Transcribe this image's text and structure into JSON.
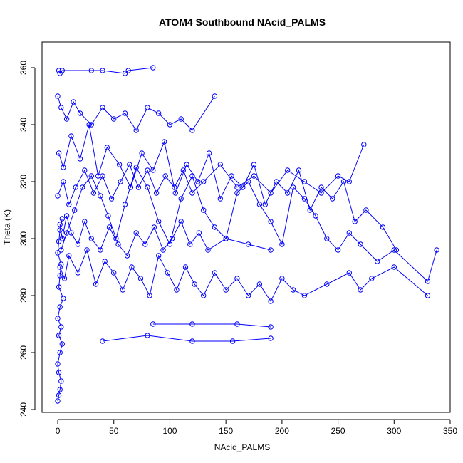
{
  "chart_data": {
    "type": "scatter",
    "title": "ATOM4 Southbound NAcid_PALMS",
    "xlabel": "NAcid_PALMS",
    "ylabel": "Theta (K)",
    "xlim": [
      -14,
      350
    ],
    "ylim": [
      239,
      369
    ],
    "xticks": [
      "0",
      "50",
      "100",
      "150",
      "200",
      "250",
      "300",
      "350"
    ],
    "xtick_values": [
      0,
      50,
      100,
      150,
      200,
      250,
      300,
      350
    ],
    "yticks": [
      "240",
      "260",
      "280",
      "300",
      "320",
      "340",
      "360"
    ],
    "ytick_values": [
      240,
      260,
      280,
      300,
      320,
      340,
      360
    ],
    "color": "#0000ff",
    "marker": "open-circle",
    "lines_connect_points": true,
    "grid": false,
    "series": [
      {
        "x": [
          0,
          1,
          2,
          3,
          1,
          0,
          2,
          4,
          1,
          3,
          0,
          2,
          5,
          1,
          2,
          3,
          0,
          1,
          2,
          4
        ],
        "y": [
          243,
          245,
          247,
          250,
          253,
          256,
          260,
          263,
          266,
          269,
          272,
          276,
          279,
          283,
          287,
          291,
          295,
          299,
          303,
          307
        ]
      },
      {
        "x": [
          3,
          8,
          15,
          22,
          30,
          38,
          45,
          52,
          60,
          70,
          80,
          90,
          100,
          110,
          120,
          130,
          140,
          150,
          160,
          170,
          180,
          190,
          200,
          210,
          220,
          230,
          240,
          250,
          260,
          270,
          285,
          300,
          330,
          338
        ],
        "y": [
          296,
          302,
          310,
          318,
          322,
          315,
          308,
          300,
          312,
          325,
          318,
          306,
          298,
          314,
          322,
          310,
          304,
          300,
          316,
          320,
          312,
          306,
          298,
          318,
          314,
          308,
          300,
          296,
          302,
          298,
          292,
          296,
          285,
          296
        ]
      },
      {
        "x": [
          1,
          5,
          12,
          20,
          28,
          36,
          44,
          55,
          65,
          75,
          85,
          95,
          105,
          115,
          125,
          135,
          145,
          155,
          165,
          175,
          185,
          195,
          205,
          215,
          225,
          235,
          245,
          255,
          265,
          275,
          290,
          302
        ],
        "y": [
          330,
          325,
          336,
          328,
          340,
          322,
          332,
          326,
          318,
          330,
          324,
          334,
          316,
          326,
          320,
          330,
          314,
          322,
          318,
          326,
          312,
          320,
          316,
          324,
          310,
          318,
          314,
          320,
          306,
          310,
          304,
          296
        ]
      },
      {
        "x": [
          2,
          6,
          10,
          18,
          26,
          34,
          42,
          50,
          58,
          66,
          74,
          82,
          90,
          98,
          106,
          114,
          122,
          130,
          140,
          150,
          160,
          170,
          180,
          190,
          200,
          210,
          220,
          240,
          260,
          270,
          280,
          300,
          330
        ],
        "y": [
          290,
          286,
          294,
          288,
          296,
          284,
          292,
          288,
          282,
          290,
          286,
          280,
          294,
          288,
          282,
          290,
          284,
          280,
          288,
          282,
          286,
          280,
          284,
          278,
          286,
          282,
          280,
          284,
          288,
          282,
          286,
          290,
          280
        ]
      },
      {
        "x": [
          0,
          3,
          8,
          14,
          20,
          30,
          40,
          50,
          60,
          70,
          80,
          90,
          100,
          110,
          120,
          140
        ],
        "y": [
          350,
          346,
          342,
          348,
          344,
          340,
          346,
          342,
          344,
          338,
          346,
          344,
          340,
          342,
          338,
          350
        ]
      },
      {
        "x": [
          1,
          2,
          4,
          30,
          40,
          60,
          63,
          85
        ],
        "y": [
          359,
          358,
          359,
          359,
          359,
          358,
          359,
          360
        ]
      },
      {
        "x": [
          0,
          5,
          10,
          16,
          24,
          32,
          40,
          48,
          56,
          64,
          72,
          80,
          88,
          96,
          104,
          112,
          120,
          130,
          145,
          160,
          175,
          190,
          205,
          220,
          235,
          250,
          260,
          273
        ],
        "y": [
          315,
          320,
          312,
          318,
          324,
          316,
          322,
          314,
          320,
          326,
          318,
          324,
          316,
          322,
          318,
          324,
          316,
          320,
          326,
          318,
          322,
          316,
          324,
          320,
          316,
          322,
          320,
          333
        ]
      },
      {
        "x": [
          2,
          4,
          8,
          12,
          18,
          24,
          30,
          38,
          46,
          54,
          62,
          70,
          78,
          86,
          94,
          102,
          110,
          118,
          126,
          134,
          150,
          170,
          190
        ],
        "y": [
          305,
          300,
          308,
          302,
          298,
          306,
          300,
          296,
          304,
          298,
          294,
          302,
          298,
          304,
          296,
          300,
          306,
          298,
          302,
          296,
          300,
          298,
          296
        ]
      },
      {
        "x": [
          40,
          80,
          120,
          156,
          190
        ],
        "y": [
          264,
          266,
          264,
          264,
          265
        ]
      },
      {
        "x": [
          85,
          120,
          160,
          190
        ],
        "y": [
          270,
          270,
          270,
          269
        ]
      }
    ]
  }
}
